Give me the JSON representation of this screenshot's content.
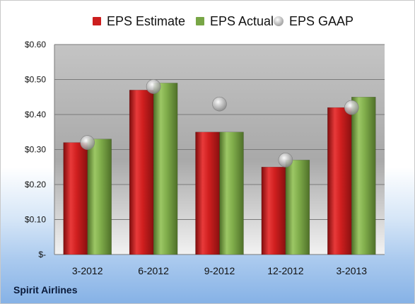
{
  "chart_data": {
    "type": "bar",
    "categories": [
      "3-2012",
      "6-2012",
      "9-2012",
      "12-2012",
      "3-2013"
    ],
    "series": [
      {
        "name": "EPS Estimate",
        "kind": "bar",
        "color": "#cc1e1e",
        "values": [
          0.32,
          0.47,
          0.35,
          0.25,
          0.42
        ]
      },
      {
        "name": "EPS Actual",
        "kind": "bar",
        "color": "#78a646",
        "values": [
          0.33,
          0.49,
          0.35,
          0.27,
          0.45
        ]
      },
      {
        "name": "EPS GAAP",
        "kind": "marker",
        "color": "#b9b9b9",
        "values": [
          0.32,
          0.48,
          0.43,
          0.27,
          0.42
        ]
      }
    ],
    "ylim": [
      0,
      0.6
    ],
    "yticks": [
      {
        "value": 0.6,
        "label": "$0.60"
      },
      {
        "value": 0.5,
        "label": "$0.50"
      },
      {
        "value": 0.4,
        "label": "$0.40"
      },
      {
        "value": 0.3,
        "label": "$0.30"
      },
      {
        "value": 0.2,
        "label": "$0.20"
      },
      {
        "value": 0.1,
        "label": "$0.10"
      },
      {
        "value": 0,
        "label": "$-"
      }
    ],
    "grid": true,
    "legend_position": "top"
  },
  "company_label": "Spirit Airlines"
}
